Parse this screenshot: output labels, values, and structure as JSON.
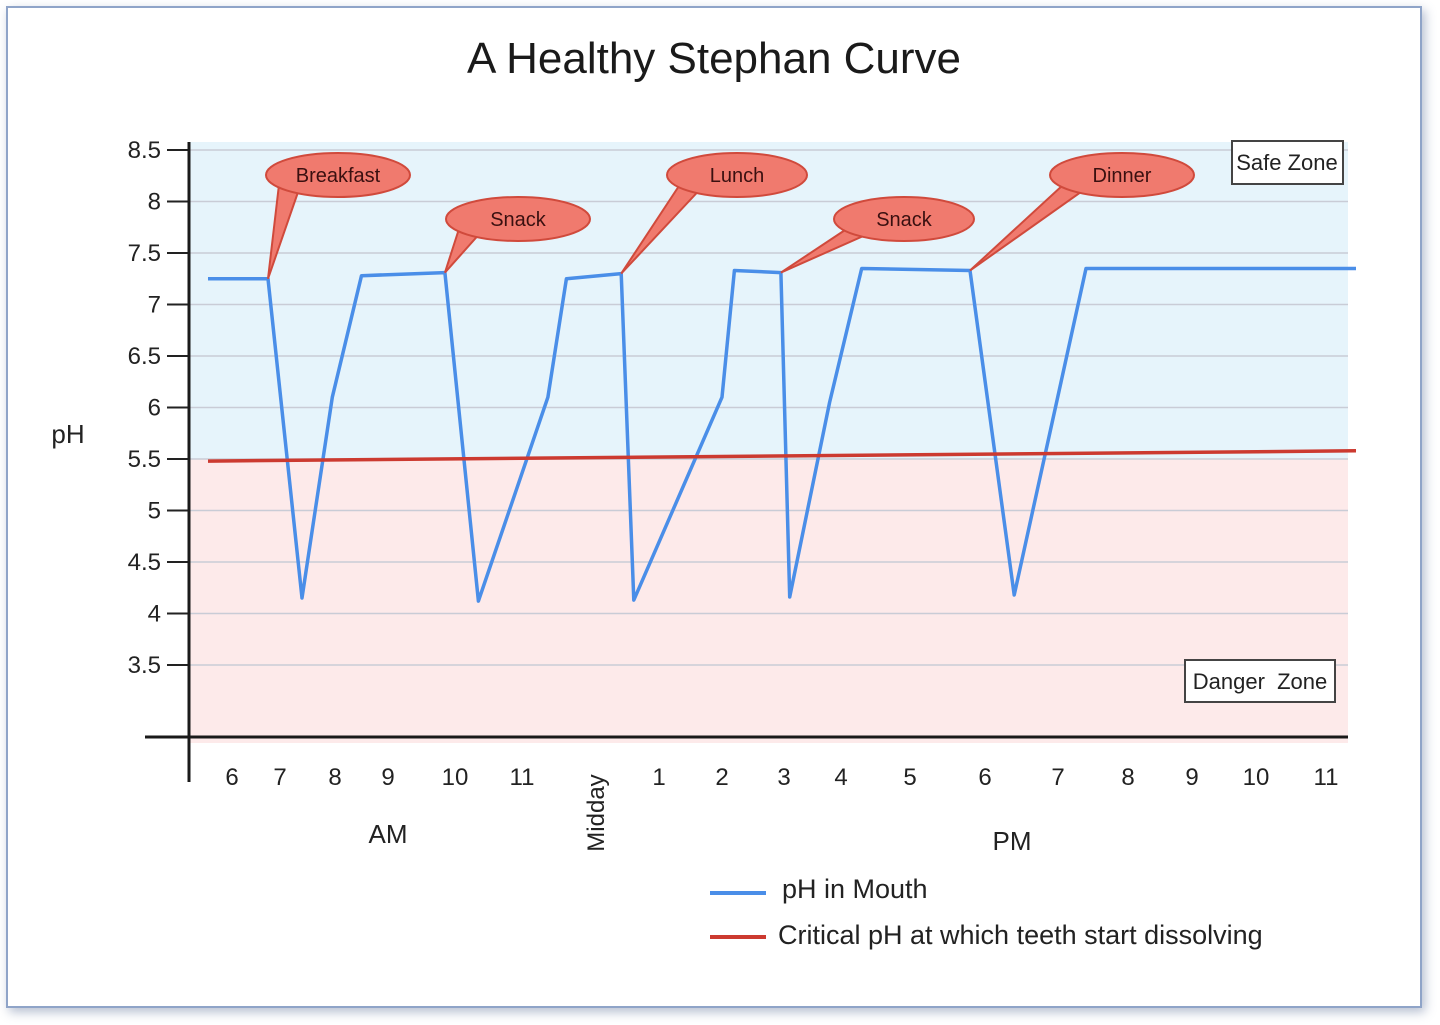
{
  "chart_data": {
    "type": "line",
    "title": "A Healthy Stephan Curve",
    "ylabel": "pH",
    "ylim": [
      3.0,
      8.5
    ],
    "y_ticks": [
      "8.5",
      "8",
      "7.5",
      "7",
      "6.5",
      "6",
      "5.5",
      "5",
      "4.5",
      "4",
      "3.5"
    ],
    "x_ticks": [
      "6",
      "7",
      "8",
      "9",
      "10",
      "11",
      "Midday",
      "1",
      "2",
      "3",
      "4",
      "5",
      "6",
      "7",
      "8",
      "9",
      "10",
      "11"
    ],
    "x_groups": [
      "AM",
      "PM"
    ],
    "series": [
      {
        "name": "pH in Mouth",
        "color": "#4a8ee8",
        "points": [
          [
            5.5,
            7.25
          ],
          [
            6.75,
            7.25
          ],
          [
            7.4,
            4.15
          ],
          [
            7.95,
            6.1
          ],
          [
            8.5,
            7.28
          ],
          [
            9.85,
            7.31
          ],
          [
            10.35,
            4.12
          ],
          [
            11.35,
            6.1
          ],
          [
            11.6,
            7.25
          ],
          [
            12.4,
            7.3
          ],
          [
            12.6,
            4.13
          ],
          [
            14.0,
            6.1
          ],
          [
            14.2,
            7.33
          ],
          [
            14.95,
            7.31
          ],
          [
            15.1,
            4.16
          ],
          [
            15.8,
            6.05
          ],
          [
            16.3,
            7.35
          ],
          [
            17.8,
            7.33
          ],
          [
            18.4,
            4.18
          ],
          [
            19.4,
            7.35
          ],
          [
            23.5,
            7.35
          ]
        ]
      },
      {
        "name": "Critical pH at which teeth start dissolving",
        "color": "#cc3a30",
        "points": [
          [
            5.5,
            5.48
          ],
          [
            23.5,
            5.58
          ]
        ]
      }
    ],
    "annotations": [
      {
        "label": "Breakfast",
        "x": 6.75,
        "y": 7.25
      },
      {
        "label": "Snack",
        "x": 9.85,
        "y": 7.31
      },
      {
        "label": "Lunch",
        "x": 12.4,
        "y": 7.3
      },
      {
        "label": "Snack",
        "x": 14.95,
        "y": 7.31
      },
      {
        "label": "Dinner",
        "x": 17.8,
        "y": 7.33
      }
    ],
    "zones": [
      {
        "label": "Safe Zone",
        "color": "#e6f4fb"
      },
      {
        "label": "Danger  Zone",
        "color": "#fdeaea"
      }
    ],
    "legend": "bottom"
  }
}
